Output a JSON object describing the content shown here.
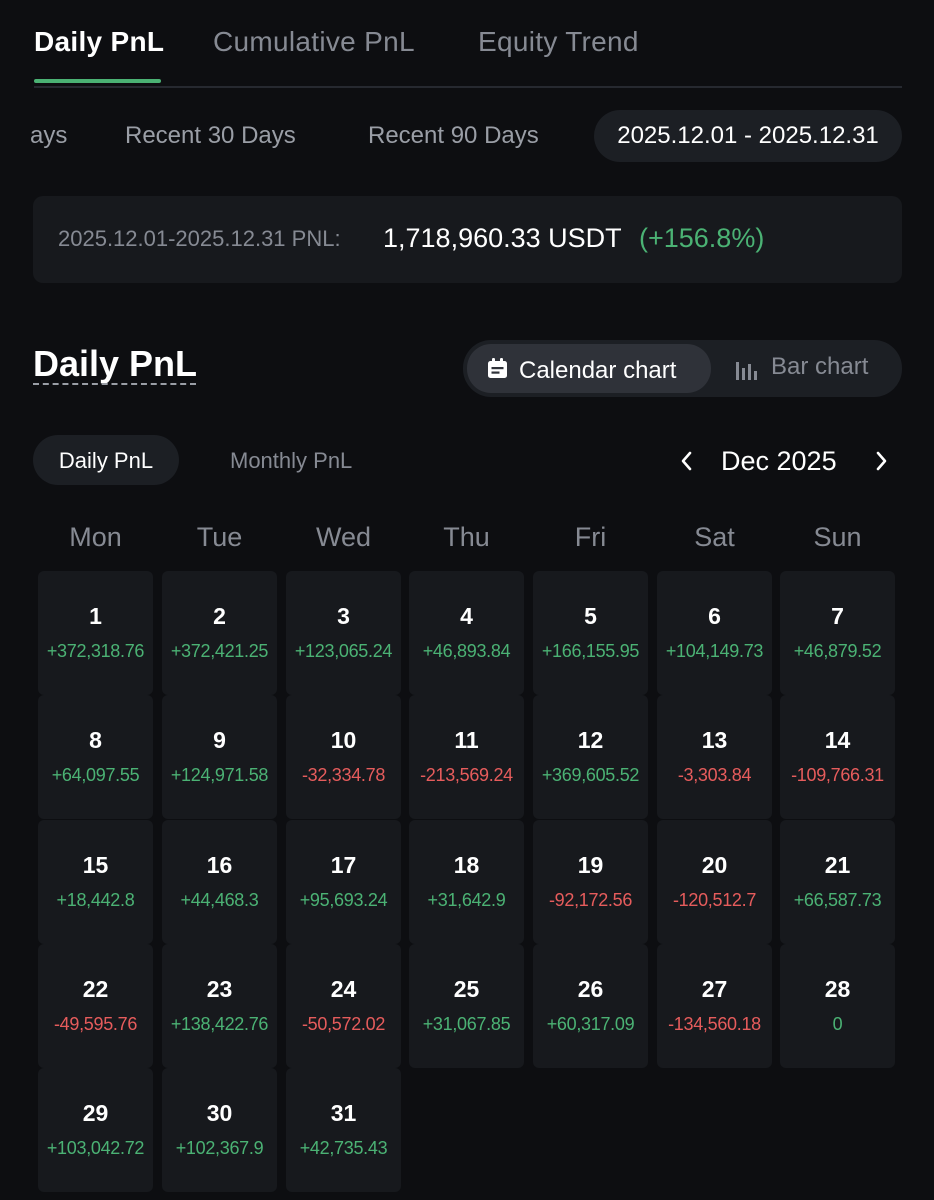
{
  "tabs": [
    {
      "label": "Daily PnL",
      "active": true
    },
    {
      "label": "Cumulative PnL",
      "active": false
    },
    {
      "label": "Equity Trend",
      "active": false
    }
  ],
  "ranges": {
    "partial": "ays",
    "recent30": "Recent 30 Days",
    "recent90": "Recent 90 Days",
    "selected": "2025.12.01 - 2025.12.31"
  },
  "summary": {
    "label": "2025.12.01-2025.12.31 PNL:",
    "value": "1,718,960.33 USDT",
    "percent": "(+156.8%)"
  },
  "section": {
    "title": "Daily PnL"
  },
  "chart_toggle": {
    "calendar": "Calendar chart",
    "bar": "Bar chart",
    "active": "calendar"
  },
  "sub_tabs": {
    "daily": "Daily PnL",
    "monthly": "Monthly PnL",
    "active": "daily"
  },
  "month_nav": {
    "label": "Dec 2025"
  },
  "weekdays": [
    "Mon",
    "Tue",
    "Wed",
    "Thu",
    "Fri",
    "Sat",
    "Sun"
  ],
  "days": [
    {
      "day": "1",
      "pnl": "+372,318.76"
    },
    {
      "day": "2",
      "pnl": "+372,421.25"
    },
    {
      "day": "3",
      "pnl": "+123,065.24"
    },
    {
      "day": "4",
      "pnl": "+46,893.84"
    },
    {
      "day": "5",
      "pnl": "+166,155.95"
    },
    {
      "day": "6",
      "pnl": "+104,149.73"
    },
    {
      "day": "7",
      "pnl": "+46,879.52"
    },
    {
      "day": "8",
      "pnl": "+64,097.55"
    },
    {
      "day": "9",
      "pnl": "+124,971.58"
    },
    {
      "day": "10",
      "pnl": "-32,334.78"
    },
    {
      "day": "11",
      "pnl": "-213,569.24"
    },
    {
      "day": "12",
      "pnl": "+369,605.52"
    },
    {
      "day": "13",
      "pnl": "-3,303.84"
    },
    {
      "day": "14",
      "pnl": "-109,766.31"
    },
    {
      "day": "15",
      "pnl": "+18,442.8"
    },
    {
      "day": "16",
      "pnl": "+44,468.3"
    },
    {
      "day": "17",
      "pnl": "+95,693.24"
    },
    {
      "day": "18",
      "pnl": "+31,642.9"
    },
    {
      "day": "19",
      "pnl": "-92,172.56"
    },
    {
      "day": "20",
      "pnl": "-120,512.7"
    },
    {
      "day": "21",
      "pnl": "+66,587.73"
    },
    {
      "day": "22",
      "pnl": "-49,595.76"
    },
    {
      "day": "23",
      "pnl": "+138,422.76"
    },
    {
      "day": "24",
      "pnl": "-50,572.02"
    },
    {
      "day": "25",
      "pnl": "+31,067.85"
    },
    {
      "day": "26",
      "pnl": "+60,317.09"
    },
    {
      "day": "27",
      "pnl": "-134,560.18"
    },
    {
      "day": "28",
      "pnl": "0"
    },
    {
      "day": "29",
      "pnl": "+103,042.72"
    },
    {
      "day": "30",
      "pnl": "+102,367.9"
    },
    {
      "day": "31",
      "pnl": "+42,735.43"
    }
  ],
  "colors": {
    "positive": "#4bb274",
    "negative": "#e65c5c",
    "accent": "#4bb274",
    "background": "#0d0e11",
    "card": "#17191d"
  },
  "icons": {
    "calendar": "calendar-icon",
    "bar": "bar-chart-icon",
    "prev": "chevron-left-icon",
    "next": "chevron-right-icon"
  }
}
